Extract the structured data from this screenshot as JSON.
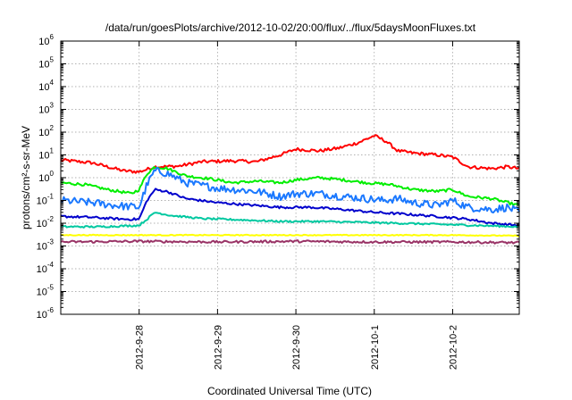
{
  "chart_data": {
    "type": "line",
    "title": "/data/run/goesPlots/archive/2012-10-02/20:00/flux/../flux/5daysMoonFluxes.txt",
    "xlabel": "Coordinated Universal Time (UTC)",
    "ylabel": "protons/cm²-s-sr-MeV",
    "yscale": "log",
    "ylim": [
      1e-06,
      1000000.0
    ],
    "xlim": [
      0,
      5.85
    ],
    "x_ticks": [
      {
        "value": 1,
        "label": "2012-9-28"
      },
      {
        "value": 2,
        "label": "2012-9-29"
      },
      {
        "value": 3,
        "label": "2012-9-30"
      },
      {
        "value": 4,
        "label": "2012-10-1"
      },
      {
        "value": 5,
        "label": "2012-10-2"
      }
    ],
    "y_ticks": [
      {
        "value": 1e-06,
        "base": "10",
        "exp": "-6"
      },
      {
        "value": 1e-05,
        "base": "10",
        "exp": "-5"
      },
      {
        "value": 0.0001,
        "base": "10",
        "exp": "-4"
      },
      {
        "value": 0.001,
        "base": "10",
        "exp": "-3"
      },
      {
        "value": 0.01,
        "base": "10",
        "exp": "-2"
      },
      {
        "value": 0.1,
        "base": "10",
        "exp": "-1"
      },
      {
        "value": 1,
        "base": "10",
        "exp": "0"
      },
      {
        "value": 10,
        "base": "10",
        "exp": "1"
      },
      {
        "value": 100,
        "base": "10",
        "exp": "2"
      },
      {
        "value": 1000,
        "base": "10",
        "exp": "3"
      },
      {
        "value": 10000,
        "base": "10",
        "exp": "4"
      },
      {
        "value": 100000,
        "base": "10",
        "exp": "5"
      },
      {
        "value": 1000000,
        "base": "10",
        "exp": "6"
      }
    ],
    "grid": true,
    "legend": "none",
    "series": [
      {
        "color": "#ff0000",
        "noise": 0.07,
        "points": [
          [
            0,
            6
          ],
          [
            0.4,
            4.5
          ],
          [
            0.8,
            2
          ],
          [
            1.0,
            1.8
          ],
          [
            1.2,
            3
          ],
          [
            1.5,
            3.2
          ],
          [
            1.8,
            5
          ],
          [
            2.2,
            5.5
          ],
          [
            2.5,
            5
          ],
          [
            2.8,
            10
          ],
          [
            3.0,
            18
          ],
          [
            3.3,
            15
          ],
          [
            3.55,
            20
          ],
          [
            3.8,
            35
          ],
          [
            4.0,
            70
          ],
          [
            4.15,
            40
          ],
          [
            4.3,
            15
          ],
          [
            4.5,
            12
          ],
          [
            4.8,
            10
          ],
          [
            5.0,
            8
          ],
          [
            5.2,
            3
          ],
          [
            5.5,
            2.5
          ],
          [
            5.7,
            3
          ],
          [
            5.85,
            2.5
          ]
        ]
      },
      {
        "color": "#00ee00",
        "noise": 0.06,
        "points": [
          [
            0,
            0.6
          ],
          [
            0.3,
            0.5
          ],
          [
            0.6,
            0.3
          ],
          [
            0.9,
            0.2
          ],
          [
            1.0,
            0.3
          ],
          [
            1.1,
            1.5
          ],
          [
            1.2,
            3
          ],
          [
            1.35,
            2.6
          ],
          [
            1.6,
            1.2
          ],
          [
            1.9,
            0.9
          ],
          [
            2.2,
            0.6
          ],
          [
            2.5,
            0.7
          ],
          [
            2.8,
            0.6
          ],
          [
            3.0,
            0.8
          ],
          [
            3.3,
            1.0
          ],
          [
            3.6,
            0.8
          ],
          [
            3.9,
            0.6
          ],
          [
            4.2,
            0.5
          ],
          [
            4.5,
            0.3
          ],
          [
            4.8,
            0.25
          ],
          [
            5.0,
            0.3
          ],
          [
            5.2,
            0.15
          ],
          [
            5.5,
            0.12
          ],
          [
            5.7,
            0.08
          ],
          [
            5.85,
            0.06
          ]
        ]
      },
      {
        "color": "#1a78ff",
        "noise": 0.17,
        "points": [
          [
            0,
            0.1
          ],
          [
            0.4,
            0.08
          ],
          [
            0.7,
            0.06
          ],
          [
            1.0,
            0.05
          ],
          [
            1.1,
            0.5
          ],
          [
            1.2,
            2
          ],
          [
            1.35,
            1.6
          ],
          [
            1.6,
            0.6
          ],
          [
            2.0,
            0.35
          ],
          [
            2.5,
            0.25
          ],
          [
            2.8,
            0.15
          ],
          [
            3.0,
            0.2
          ],
          [
            3.3,
            0.2
          ],
          [
            3.6,
            0.15
          ],
          [
            3.9,
            0.12
          ],
          [
            4.1,
            0.1
          ],
          [
            4.3,
            0.12
          ],
          [
            4.5,
            0.08
          ],
          [
            4.8,
            0.06
          ],
          [
            5.0,
            0.1
          ],
          [
            5.2,
            0.05
          ],
          [
            5.5,
            0.04
          ],
          [
            5.7,
            0.05
          ],
          [
            5.85,
            0.03
          ]
        ]
      },
      {
        "color": "#0000cc",
        "noise": 0.05,
        "points": [
          [
            0,
            0.02
          ],
          [
            0.4,
            0.018
          ],
          [
            0.8,
            0.015
          ],
          [
            1.0,
            0.015
          ],
          [
            1.1,
            0.1
          ],
          [
            1.2,
            0.3
          ],
          [
            1.35,
            0.25
          ],
          [
            1.6,
            0.12
          ],
          [
            2.0,
            0.08
          ],
          [
            2.5,
            0.06
          ],
          [
            2.8,
            0.05
          ],
          [
            3.2,
            0.05
          ],
          [
            3.6,
            0.04
          ],
          [
            4.0,
            0.03
          ],
          [
            4.4,
            0.025
          ],
          [
            4.8,
            0.02
          ],
          [
            5.2,
            0.015
          ],
          [
            5.5,
            0.01
          ],
          [
            5.85,
            0.008
          ]
        ]
      },
      {
        "color": "#00c8a0",
        "noise": 0.04,
        "points": [
          [
            0,
            0.007
          ],
          [
            0.5,
            0.007
          ],
          [
            1.0,
            0.008
          ],
          [
            1.1,
            0.015
          ],
          [
            1.2,
            0.03
          ],
          [
            1.4,
            0.022
          ],
          [
            1.8,
            0.016
          ],
          [
            2.3,
            0.014
          ],
          [
            2.8,
            0.012
          ],
          [
            3.3,
            0.012
          ],
          [
            3.8,
            0.011
          ],
          [
            4.3,
            0.01
          ],
          [
            4.8,
            0.009
          ],
          [
            5.3,
            0.008
          ],
          [
            5.85,
            0.007
          ]
        ]
      },
      {
        "color": "#ffff00",
        "noise": 0.02,
        "points": [
          [
            0,
            0.003
          ],
          [
            1.0,
            0.003
          ],
          [
            2.0,
            0.003
          ],
          [
            3.0,
            0.003
          ],
          [
            4.0,
            0.003
          ],
          [
            5.0,
            0.003
          ],
          [
            5.85,
            0.0028
          ]
        ]
      },
      {
        "color": "#993366",
        "noise": 0.05,
        "points": [
          [
            0,
            0.0015
          ],
          [
            1.0,
            0.0016
          ],
          [
            2.0,
            0.0015
          ],
          [
            3.0,
            0.0016
          ],
          [
            4.0,
            0.0015
          ],
          [
            5.0,
            0.0015
          ],
          [
            5.85,
            0.0014
          ]
        ]
      }
    ]
  }
}
